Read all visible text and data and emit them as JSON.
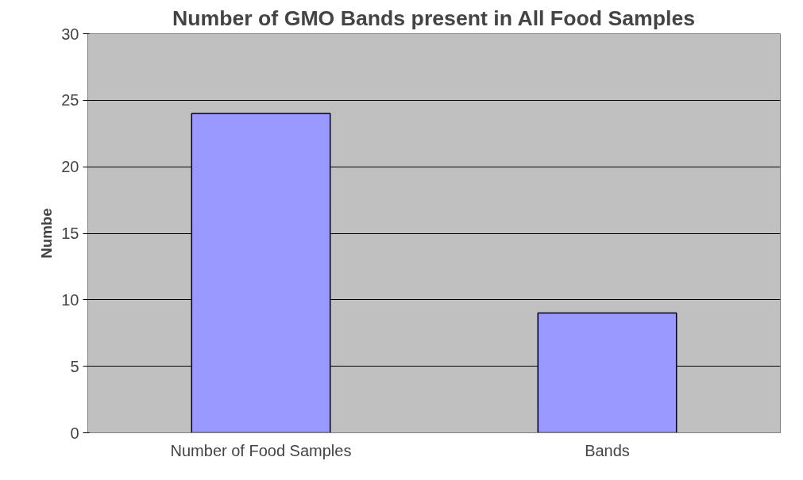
{
  "chart_data": {
    "type": "bar",
    "title": "Number of GMO Bands present in All Food Samples",
    "ylabel": "Numbe",
    "categories": [
      "Number of Food Samples",
      "Bands"
    ],
    "values": [
      24,
      9
    ],
    "color": "#9999ff",
    "ylim": [
      0,
      30
    ],
    "yticks": [
      0,
      5,
      10,
      15,
      20,
      25,
      30
    ],
    "grid": "y"
  }
}
